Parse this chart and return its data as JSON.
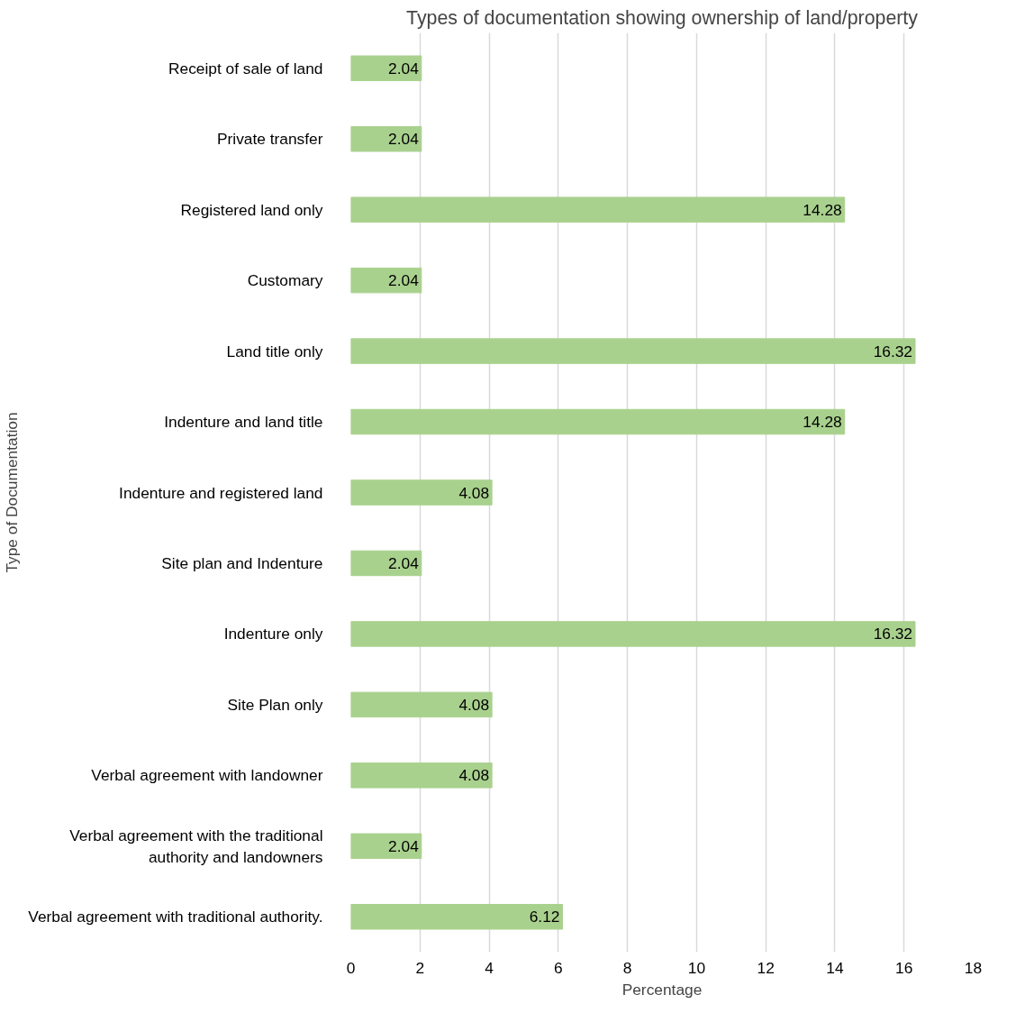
{
  "chart_data": {
    "type": "bar",
    "orientation": "horizontal",
    "title": "Types of documentation showing ownership of land/property",
    "xlabel": "Percentage",
    "ylabel": "Type of Documentation",
    "categories": [
      "Receipt of sale of land",
      "Private transfer",
      "Registered land only",
      "Customary",
      "Land title only",
      "Indenture and land title",
      "Indenture and registered land",
      "Site plan and Indenture",
      "Indenture only",
      "Site Plan only",
      "Verbal agreement with landowner",
      "Verbal agreement with the traditional authority and landowners",
      "Verbal agreement with traditional authority."
    ],
    "values": [
      2.04,
      2.04,
      14.28,
      2.04,
      16.32,
      14.28,
      4.08,
      2.04,
      16.32,
      4.08,
      4.08,
      2.04,
      6.12
    ],
    "color": "#a9d18e",
    "xlim": [
      0,
      18
    ],
    "xticks": [
      0,
      2,
      4,
      6,
      8,
      10,
      12,
      14,
      16,
      18
    ],
    "grid": "x",
    "legend": false,
    "data_labels": true
  }
}
